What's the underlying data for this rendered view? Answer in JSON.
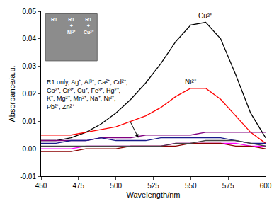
{
  "chart_data": {
    "type": "line",
    "x_label": "Wavelength/nm",
    "y_label": "Absorbance/a.u.",
    "x": [
      450,
      460,
      470,
      480,
      490,
      500,
      510,
      520,
      530,
      540,
      550,
      560,
      570,
      580,
      590,
      600
    ],
    "series": [
      {
        "name": "Cu²⁺",
        "color": "#000000",
        "values": [
          0.003,
          0.003,
          0.004,
          0.006,
          0.009,
          0.013,
          0.018,
          0.024,
          0.031,
          0.039,
          0.045,
          0.046,
          0.04,
          0.027,
          0.013,
          0.004
        ]
      },
      {
        "name": "Ni²⁺",
        "color": "#ff0000",
        "values": [
          0.005,
          0.005,
          0.005,
          0.006,
          0.007,
          0.008,
          0.01,
          0.012,
          0.015,
          0.019,
          0.022,
          0.022,
          0.018,
          0.012,
          0.006,
          0.002
        ]
      },
      {
        "color": "#800080",
        "values": [
          0.003,
          0.003,
          0.003,
          0.003,
          0.004,
          0.004,
          0.004,
          0.005,
          0.005,
          0.005,
          0.005,
          0.006,
          0.006,
          0.006,
          0.006,
          0.006
        ]
      },
      {
        "color": "#1a1a8b",
        "values": [
          0.002,
          0.002,
          0.003,
          0.003,
          0.004,
          0.003,
          0.003,
          0.003,
          0.004,
          0.004,
          0.004,
          0.004,
          0.004,
          0.003,
          0.002,
          0.002
        ]
      },
      {
        "color": "#ff00ff",
        "values": [
          0.0,
          0.0,
          0.0,
          0.001,
          0.001,
          0.001,
          0.001,
          0.001,
          0.001,
          0.002,
          0.002,
          0.002,
          0.002,
          0.002,
          0.001,
          0.001
        ]
      },
      {
        "color": "#8b0000",
        "values": [
          -0.001,
          -0.001,
          -0.001,
          0.0,
          0.0,
          0.0,
          0.001,
          0.001,
          0.001,
          0.001,
          0.002,
          0.002,
          0.002,
          0.001,
          0.001,
          0.0
        ]
      },
      {
        "color": "#444444",
        "values": [
          0.001,
          0.001,
          0.001,
          0.001,
          0.001,
          0.001,
          0.001,
          0.001,
          0.001,
          0.002,
          0.002,
          0.003,
          0.003,
          0.003,
          0.002,
          0.001
        ]
      }
    ],
    "xlim": [
      450,
      600
    ],
    "xticks": [
      450,
      475,
      500,
      525,
      550,
      575,
      600
    ],
    "ylim": [
      -0.01,
      0.05
    ],
    "yticks": [
      -0.01,
      {
        "value": 0,
        "label": "0.00"
      },
      0.01,
      0.02,
      0.03,
      0.04,
      0.05
    ],
    "annotations": [
      {
        "lines": [
          "R1 only, Ag⁺, Al³⁺, Ca²⁺, Cd²⁺,",
          "Co²⁺, Cr³⁺, Cu⁺, Fe³⁺, Hg²⁺,",
          "K⁺, Mg²⁺, Mn²⁺, Na⁺, Ni²⁺,",
          "Pb²⁺, Zn²⁺"
        ],
        "x": 515,
        "y": 0.004
      }
    ],
    "inset": {
      "labels": [
        [
          "R1"
        ],
        [
          "R1",
          "+",
          "Ni²⁺"
        ],
        [
          "R1",
          "+",
          "Cu²⁺"
        ]
      ]
    }
  }
}
